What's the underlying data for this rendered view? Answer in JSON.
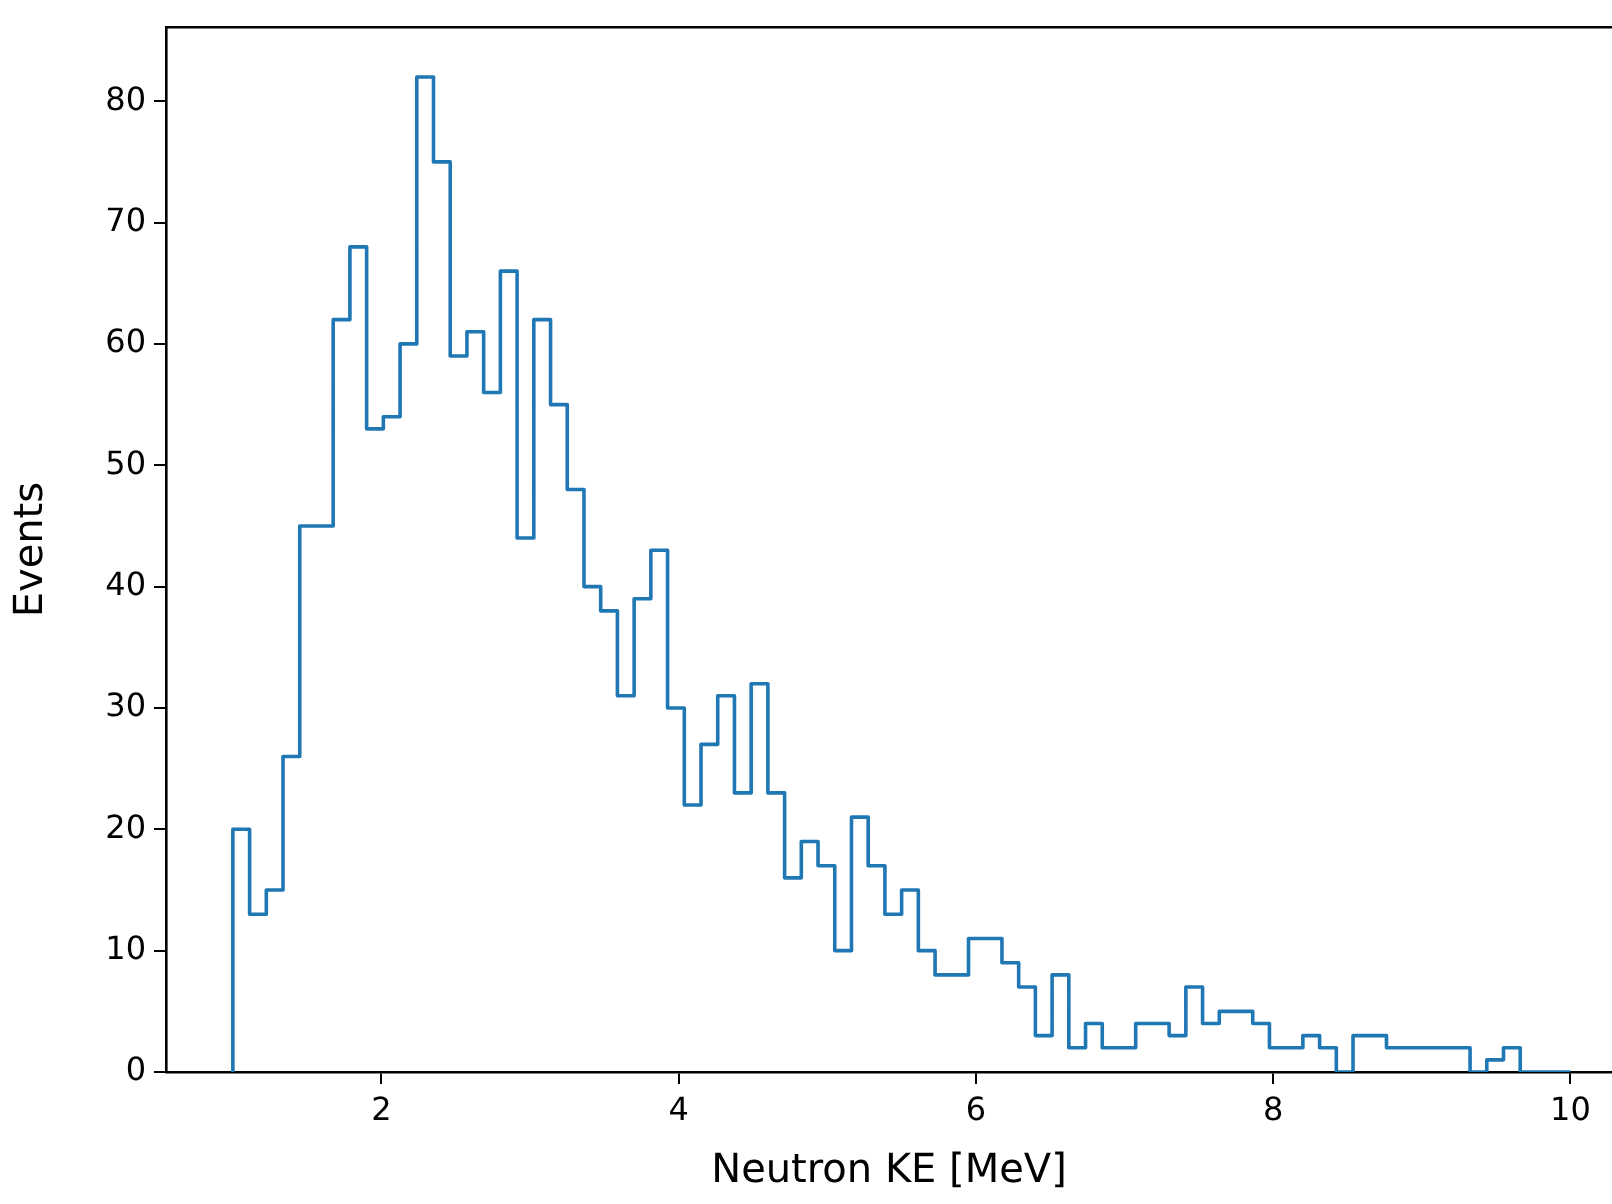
{
  "chart_data": {
    "type": "histogram",
    "xlabel": "Neutron KE [MeV]",
    "ylabel": "Events",
    "color": "#1f77b4",
    "bins": [
      1,
      1.1125,
      1.225,
      1.3375,
      1.45,
      1.5625,
      1.675,
      1.7875,
      1.9,
      2.0125,
      2.125,
      2.2375,
      2.35,
      2.4625,
      2.575,
      2.6875,
      2.8,
      2.9125,
      3.025,
      3.1375,
      3.25,
      3.3625,
      3.475,
      3.5875,
      3.7,
      3.8125,
      3.925,
      4.0375,
      4.15,
      4.2625,
      4.375,
      4.4875,
      4.6,
      4.7125,
      4.825,
      4.9375,
      5.05,
      5.1625,
      5.275,
      5.3875,
      5.5,
      5.6125,
      5.725,
      5.8375,
      5.95,
      6.0625,
      6.175,
      6.2875,
      6.4,
      6.5125,
      6.625,
      6.7375,
      6.85,
      6.9625,
      7.075,
      7.1875,
      7.3,
      7.4125,
      7.525,
      7.6375,
      7.75,
      7.8625,
      7.975,
      8.0875,
      8.2,
      8.3125,
      8.425,
      8.5375,
      8.65,
      8.7625,
      8.875,
      8.9875,
      9.1,
      9.2125,
      9.325,
      9.4375,
      9.55,
      9.6625,
      9.775,
      9.8875,
      10
    ],
    "values": [
      20,
      13,
      15,
      26,
      45,
      45,
      62,
      68,
      53,
      54,
      60,
      82,
      75,
      59,
      61,
      56,
      66,
      44,
      62,
      55,
      48,
      40,
      38,
      31,
      39,
      43,
      30,
      22,
      27,
      31,
      23,
      32,
      23,
      16,
      19,
      17,
      10,
      21,
      17,
      13,
      15,
      10,
      8,
      8,
      11,
      11,
      9,
      7,
      3,
      8,
      2,
      4,
      2,
      2,
      4,
      4,
      3,
      7,
      4,
      5,
      5,
      4,
      2,
      2,
      3,
      2,
      0,
      3,
      3,
      2,
      2,
      2,
      2,
      2,
      0,
      1,
      2,
      0,
      0,
      0
    ],
    "xlim": [
      0.55,
      10.28
    ],
    "ylim": [
      0,
      86.1
    ],
    "xticks": [
      2,
      4,
      6,
      8,
      10
    ],
    "yticks": [
      0,
      10,
      20,
      30,
      40,
      50,
      60,
      70,
      80
    ],
    "grid": false,
    "legend": false
  }
}
